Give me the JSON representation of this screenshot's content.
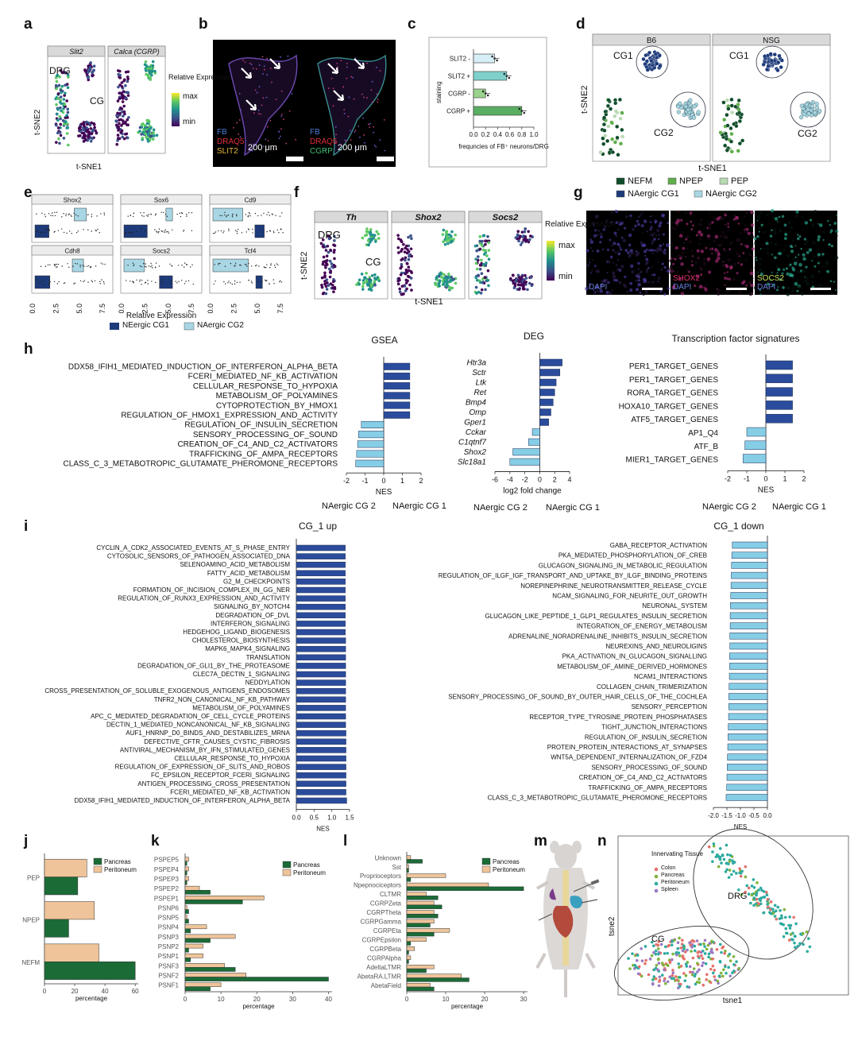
{
  "panel_letters": [
    "a",
    "b",
    "c",
    "d",
    "e",
    "f",
    "g",
    "h",
    "i",
    "j",
    "k",
    "l",
    "m",
    "n"
  ],
  "a": {
    "headers": [
      "Slit2",
      "Calca (CGRP)"
    ],
    "label_drg": "DRG",
    "label_cg": "CG",
    "legend_title": "Relative Expression",
    "legend_max": "max",
    "legend_min": "min",
    "xlabel": "t-SNE1",
    "ylabel": "t-SNE2"
  },
  "b": {
    "left": [
      "FB",
      "DRAQ5",
      "SLIT2"
    ],
    "right": [
      "FB",
      "DRAQ5",
      "CGRP"
    ],
    "scale": "200 μm",
    "colors": {
      "FB": "#4a7dd8",
      "DRAQ5": "#e0303a",
      "SLIT2": "#e8b93a",
      "CGRP": "#3fbf73"
    }
  },
  "c": {
    "chart_data": {
      "type": "bar",
      "categories": [
        "SLIT2 -",
        "SLIT2 +",
        "CGRP -",
        "CGRP +"
      ],
      "values": [
        0.35,
        0.55,
        0.2,
        0.8
      ],
      "ylabel": "staining",
      "xlabel": "frequncies of FB⁺ neurons/DRG",
      "xlim": [
        0,
        1.0
      ],
      "ticks": [
        "0.0",
        "0.2",
        "0.4",
        "0.6",
        "0.8",
        "1.0"
      ],
      "colors": [
        "#d6eef5",
        "#7fd0cc",
        "#9bd28d",
        "#5aae63"
      ]
    }
  },
  "d": {
    "headers": [
      "B6",
      "NSG"
    ],
    "cg1": "CG1",
    "cg2": "CG2",
    "xlabel": "t-SNE1",
    "ylabel": "t-SNE2",
    "legend": [
      {
        "label": "NEFM",
        "color": "#0f4d2a"
      },
      {
        "label": "NPEP",
        "color": "#5fae4b"
      },
      {
        "label": "PEP",
        "color": "#b8d9b2"
      },
      {
        "label": "NAergic CG1",
        "color": "#1d3a7a"
      },
      {
        "label": "NAergic CG2",
        "color": "#a8d6e4"
      }
    ]
  },
  "e": {
    "genes": [
      "Shox2",
      "Sox6",
      "Cd9",
      "Cdh8",
      "Socs2",
      "Tcf4"
    ],
    "ticks": [
      "0.0",
      "2.5",
      "5.0",
      "7.5"
    ],
    "xlabel": "Relative Expression",
    "legend": [
      {
        "label": "NEergic CG1",
        "color": "#1d3a7a"
      },
      {
        "label": "NAergic CG2",
        "color": "#a8d6e4"
      }
    ]
  },
  "f": {
    "headers": [
      "Th",
      "Shox2",
      "Socs2"
    ],
    "label_drg": "DRG",
    "label_cg": "CG",
    "legend_title": "Relative Expression",
    "legend_max": "max",
    "legend_min": "min",
    "xlabel": "t-SNE1",
    "ylabel": "t-SNE2"
  },
  "g": {
    "labels": [
      [
        {
          "t": "DAPI",
          "c": "#6a7fe0"
        }
      ],
      [
        {
          "t": "SHOX2",
          "c": "#e0306a"
        },
        {
          "t": "DAPI",
          "c": "#6a7fe0"
        }
      ],
      [
        {
          "t": "SOCS2",
          "c": "#c8e05a"
        },
        {
          "t": "DAPI",
          "c": "#6a7fe0"
        }
      ]
    ]
  },
  "h": {
    "gsea": {
      "title": "GSEA",
      "xlabel": "NES",
      "ticks": [
        "-2",
        "-1",
        "0",
        "1",
        "2"
      ],
      "xlim": [
        -2,
        2
      ],
      "terms": [
        "DDX58_IFIH1_MEDIATED_INDUCTION_OF_INTERFERON_ALPHA_BETA",
        "FCERI_MEDIATED_NF_KB_ACTIVATION",
        "CELLULAR_RESPONSE_TO_HYPOXIA",
        "METABOLISM_OF_POLYAMINES",
        "CYTOPROTECTION_BY_HMOX1",
        "REGULATION_OF_HMOX1_EXPRESSION_AND_ACTIVITY",
        "REGULATION_OF_INSULIN_SECRETION",
        "SENSORY_PROCESSING_OF_SOUND",
        "CREATION_OF_C4_AND_C2_ACTIVATORS",
        "TRAFFICKING_OF_AMPA_RECEPTORS",
        "CLASS_C_3_METABOTROPIC_GLUTAMATE_PHEROMONE_RECEPTORS"
      ],
      "values": [
        1.4,
        1.4,
        1.4,
        1.4,
        1.4,
        1.4,
        -1.2,
        -1.35,
        -1.4,
        -1.45,
        -1.5
      ]
    },
    "deg": {
      "title": "DEG",
      "xlabel": "log2 fold change",
      "ticks": [
        "-6",
        "-4",
        "-2",
        "0",
        "2",
        "4"
      ],
      "xlim": [
        -6,
        4
      ],
      "genes": [
        "Htr3a",
        "Sctr",
        "Ltk",
        "Ret",
        "Bmp4",
        "Omp",
        "Gper1",
        "Cckar",
        "C1qtnf7",
        "Shox2",
        "Slc18a1"
      ],
      "values": [
        3.0,
        2.7,
        2.2,
        2.0,
        1.8,
        1.5,
        1.2,
        -1.0,
        -1.5,
        -3.6,
        -4.0
      ]
    },
    "tf": {
      "title": "Transcription factor signatures",
      "xlabel": "NES",
      "ticks": [
        "-2",
        "-1",
        "0",
        "1",
        "2"
      ],
      "xlim": [
        -2,
        2
      ],
      "terms": [
        "PER1_TARGET_GENES",
        "PER1_TARGET_GENES",
        "RORA_TARGET_GENES",
        "HOXA10_TARGET_GENES",
        "ATF5_TARGET_GENES",
        "AP1_Q4",
        "ATF_B",
        "MIER1_TARGET_GENES"
      ],
      "values": [
        1.4,
        1.4,
        1.4,
        1.4,
        1.4,
        -1.0,
        -1.1,
        -1.2
      ]
    },
    "left_group": "NAergic CG 2",
    "right_group": "NAergic CG 1"
  },
  "i": {
    "up": {
      "title": "CG_1 up",
      "xlabel": "NES",
      "ticks": [
        "0.0",
        "0.5",
        "1.0",
        "1.5"
      ],
      "xlim": [
        0,
        1.5
      ],
      "terms": [
        "CYCLIN_A_CDK2_ASSOCIATED_EVENTS_AT_S_PHASE_ENTRY",
        "CYTOSOLIC_SENSORS_OF_PATHOGEN_ASSOCIATED_DNA",
        "SELENOAMINO_ACID_METABOLISM",
        "FATTY_ACID_METABOLISM",
        "G2_M_CHECKPOINTS",
        "FORMATION_OF_INCISION_COMPLEX_IN_GG_NER",
        "REGULATION_OF_RUNX3_EXPRESSION_AND_ACTIVITY",
        "SIGNALING_BY_NOTCH4",
        "DEGRADATION_OF_DVL",
        "INTERFERON_SIGNALING",
        "HEDGEHOG_LIGAND_BIOGENESIS",
        "CHOLESTEROL_BIOSYNTHESIS",
        "MAPK6_MAPK4_SIGNALING",
        "TRANSLATION",
        "DEGRADATION_OF_GLI1_BY_THE_PROTEASOME",
        "CLEC7A_DECTIN_1_SIGNALING",
        "NEDDYLATION",
        "CROSS_PRESENTATION_OF_SOLUBLE_EXOGENOUS_ANTIGENS_ENDOSOMES",
        "TNFR2_NON_CANONICAL_NF_KB_PATHWAY",
        "METABOLISM_OF_POLYAMINES",
        "APC_C_MEDIATED_DEGRADATION_OF_CELL_CYCLE_PROTEINS",
        "DECTIN_1_MEDIATED_NONCANONICAL_NF_KB_SIGNALING",
        "AUF1_HNRNP_D0_BINDS_AND_DESTABILIZES_MRNA",
        "DEFECTIVE_CFTR_CAUSES_CYSTIC_FIBROSIS",
        "ANTIVIRAL_MECHANISM_BY_IFN_STIMULATED_GENES",
        "CELLULAR_RESPONSE_TO_HYPOXIA",
        "REGULATION_OF_EXPRESSION_OF_SLITS_AND_ROBOS",
        "FC_EPSILON_RECEPTOR_FCERI_SIGNALING",
        "ANTIGEN_PROCESSING_CROSS_PRESENTATION",
        "FCERI_MEDIATED_NF_KB_ACTIVATION",
        "DDX58_IFIH1_MEDIATED_INDUCTION_OF_INTERFERON_ALPHA_BETA"
      ],
      "values": [
        1.38,
        1.38,
        1.38,
        1.38,
        1.38,
        1.38,
        1.38,
        1.38,
        1.38,
        1.38,
        1.38,
        1.39,
        1.39,
        1.39,
        1.39,
        1.39,
        1.39,
        1.39,
        1.39,
        1.39,
        1.39,
        1.39,
        1.4,
        1.4,
        1.4,
        1.4,
        1.4,
        1.4,
        1.4,
        1.4,
        1.42
      ]
    },
    "down": {
      "title": "CG_1 down",
      "xlabel": "NES",
      "ticks": [
        "-2.0",
        "-1.5",
        "-1.0",
        "-0.5",
        "0.0"
      ],
      "xlim": [
        -2,
        0
      ],
      "terms": [
        "GABA_RECEPTOR_ACTIVATION",
        "PKA_MEDIATED_PHOSPHORYLATION_OF_CREB",
        "GLUCAGON_SIGNALING_IN_METABOLIC_REGULATION",
        "REGULATION_OF_ILGF_IGF_TRANSPORT_AND_UPTAKE_BY_ILGF_BINDING_PROTEINS",
        "NOREPINEPHRINE_NEUROTRANSMITTER_RELEASE_CYCLE",
        "NCAM_SIGNALING_FOR_NEURITE_OUT_GROWTH",
        "NEURONAL_SYSTEM",
        "GLUCAGON_LIKE_PEPTIDE_1_GLP1_REGULATES_INSULIN_SECRETION",
        "INTEGRATION_OF_ENERGY_METABOLISM",
        "ADRENALINE_NORADRENALINE_INHIBITS_INSULIN_SECRETION",
        "NEUREXINS_AND_NEUROLIGINS",
        "PKA_ACTIVATION_IN_GLUCAGON_SIGNALLING",
        "METABOLISM_OF_AMINE_DERIVED_HORMONES",
        "NCAM1_INTERACTIONS",
        "COLLAGEN_CHAIN_TRIMERIZATION",
        "SENSORY_PROCESSING_OF_SOUND_BY_OUTER_HAIR_CELLS_OF_THE_COCHLEA",
        "SENSORY_PERCEPTION",
        "RECEPTOR_TYPE_TYROSINE_PROTEIN_PHOSPHATASES",
        "TIGHT_JUNCTION_INTERACTIONS",
        "REGULATION_OF_INSULIN_SECRETION",
        "PROTEIN_PROTEIN_INTERACTIONS_AT_SYNAPSES",
        "WNT5A_DEPENDENT_INTERNALIZATION_OF_FZD4",
        "SENSORY_PROCESSING_OF_SOUND",
        "CREATION_OF_C4_AND_C2_ACTIVATORS",
        "TRAFFICKING_OF_AMPA_RECEPTORS",
        "CLASS_C_3_METABOTROPIC_GLUTAMATE_PHEROMONE_RECEPTORS"
      ],
      "values": [
        -1.3,
        -1.32,
        -1.33,
        -1.34,
        -1.35,
        -1.36,
        -1.37,
        -1.38,
        -1.38,
        -1.39,
        -1.39,
        -1.4,
        -1.4,
        -1.41,
        -1.42,
        -1.43,
        -1.43,
        -1.44,
        -1.45,
        -1.46,
        -1.47,
        -1.48,
        -1.49,
        -1.5,
        -1.51,
        -1.53
      ]
    }
  },
  "j": {
    "chart_data": {
      "type": "bar",
      "categories": [
        "PEP",
        "NPEP",
        "NEFM"
      ],
      "series": [
        {
          "name": "Pancreas",
          "values": [
            22,
            16,
            60
          ]
        },
        {
          "name": "Peritoneum",
          "values": [
            28,
            33,
            36
          ]
        }
      ],
      "xlabel": "percentage",
      "ticks": [
        "0",
        "20",
        "40",
        "60"
      ],
      "xlim": [
        0,
        62
      ]
    }
  },
  "k": {
    "chart_data": {
      "type": "bar",
      "categories": [
        "PSPEP5",
        "PSPEP4",
        "PSPEP3",
        "PSPEP2",
        "PSPEP1",
        "PSNP6",
        "PSNP5",
        "PSNP4",
        "PSNP3",
        "PSNP2",
        "PSNP1",
        "PSNF3",
        "PSNF2",
        "PSNF1"
      ],
      "series": [
        {
          "name": "Pancreas",
          "values": [
            0.5,
            0.5,
            0.5,
            7,
            16,
            1,
            1,
            1.5,
            7,
            1,
            1.5,
            14,
            40,
            7
          ]
        },
        {
          "name": "Peritoneum",
          "values": [
            1,
            1,
            1,
            4,
            22,
            0.5,
            0.5,
            6,
            14,
            5,
            5,
            11,
            17,
            10
          ]
        }
      ],
      "xlabel": "percentage",
      "ticks": [
        "0",
        "10",
        "20",
        "30",
        "40"
      ],
      "xlim": [
        0,
        41
      ]
    }
  },
  "l": {
    "chart_data": {
      "type": "bar",
      "categories": [
        "Unknown",
        "Sst",
        "Proprioceptors",
        "Npepnociceptors",
        "CLTMR",
        "CGRPZeta",
        "CGRPTheta",
        "CGRPGamma",
        "CGRPEta",
        "CGRPEpsilon",
        "CGRPBeta",
        "CGRPAlpha",
        "AdeltaLTMR",
        "AbetaRA.LTMR",
        "AbetaField"
      ],
      "series": [
        {
          "name": "Pancreas",
          "values": [
            4,
            0.5,
            1,
            30,
            8,
            9,
            8,
            6,
            7,
            1,
            0.5,
            0.5,
            5,
            16,
            7
          ]
        },
        {
          "name": "Peritoneum",
          "values": [
            1,
            0.5,
            10,
            21,
            5,
            7,
            7,
            7,
            11,
            5,
            2,
            1,
            7,
            14,
            6
          ]
        }
      ],
      "xlabel": "percentage",
      "ticks": [
        "0",
        "10",
        "20",
        "30"
      ],
      "xlim": [
        0,
        31
      ]
    }
  },
  "n": {
    "legend_title": "Innervating Tissue",
    "legend": [
      {
        "label": "Colon",
        "color": "#e4716a"
      },
      {
        "label": "Pancreas",
        "color": "#7fb33c"
      },
      {
        "label": "Peritoneum",
        "color": "#2eaaa0"
      },
      {
        "label": "Spleen",
        "color": "#9a79c4"
      }
    ],
    "label_drg": "DRG",
    "label_cg": "CG",
    "xlabel": "tsne1",
    "ylabel": "tsne2"
  },
  "colors": {
    "dark_blue": "#2b4c9c",
    "light_blue": "#86cde6",
    "pancreas": "#1b6b37",
    "peritoneum": "#efc49a"
  }
}
